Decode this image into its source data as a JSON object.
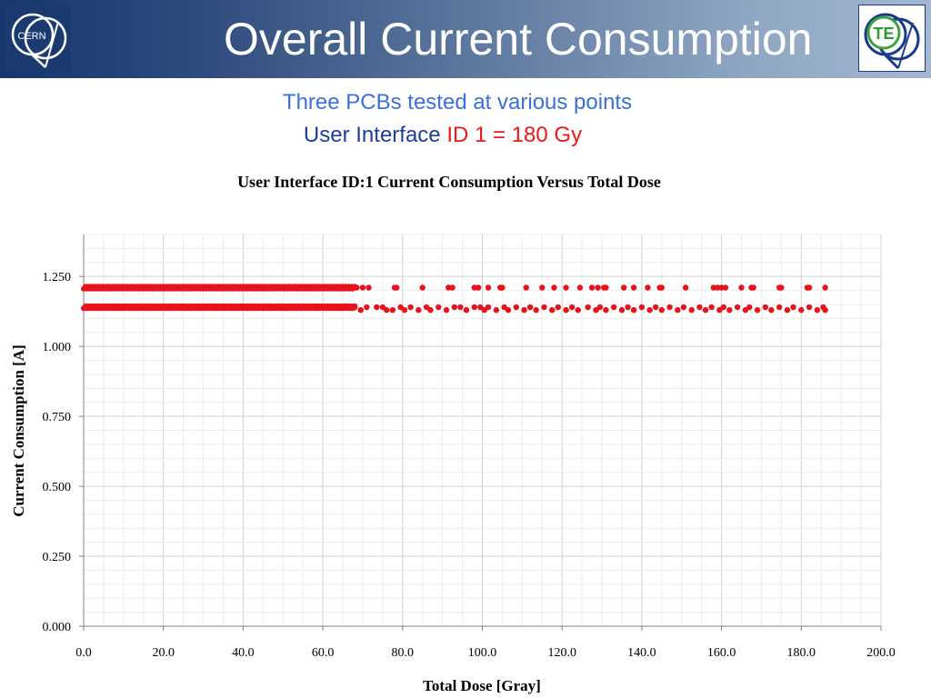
{
  "slide": {
    "title": "Overall Current Consumption",
    "subtitle_line1": "Three PCBs tested at various points",
    "subtitle_line2_prefix": "User Interface",
    "subtitle_line2_highlight": "ID 1 = 180 Gy",
    "cern_logo_text": "CERN",
    "te_logo_text": "TE"
  },
  "colors": {
    "title_text": "#ffffff",
    "subtitle_blue": "#3a6fe0",
    "subtitle_dark_blue": "#1c3d9c",
    "highlight_red": "#e81a1a",
    "marker_red": "#e8131a",
    "header_band_start": "#16366c",
    "header_band_end": "#a3b8cf"
  },
  "chart_data": {
    "type": "scatter",
    "title": "User Interface ID:1 Current Consumption Versus Total Dose",
    "xlabel": "Total Dose [Gray]",
    "ylabel": "Current Consumption [A]",
    "xlim": [
      0,
      200
    ],
    "ylim": [
      0,
      1.4
    ],
    "x_ticks": [
      "0.0",
      "20.0",
      "40.0",
      "60.0",
      "80.0",
      "100.0",
      "120.0",
      "140.0",
      "160.0",
      "180.0",
      "200.0"
    ],
    "y_ticks": [
      "0.000",
      "0.250",
      "0.500",
      "0.750",
      "1.000",
      "1.250"
    ],
    "grid": "on",
    "marker_color": "#e8131a",
    "series": [
      {
        "dense_range": [
          0,
          68
        ],
        "dense_level": 1.21,
        "x": [
          68.5,
          70.0,
          71.5,
          78.0,
          78.5,
          85.0,
          91.5,
          92.5,
          98.0,
          99.0,
          101.5,
          104.5,
          105.0,
          111.0,
          115.0,
          118.0,
          121.0,
          124.5,
          127.5,
          129.0,
          130.5,
          131.0,
          135.5,
          138.0,
          141.5,
          144.5,
          145.0,
          151.0,
          158.0,
          159.0,
          160.0,
          161.0,
          165.0,
          167.5,
          168.0,
          174.5,
          175.0,
          181.5,
          182.0,
          186.0
        ],
        "y": [
          1.21,
          1.21,
          1.21,
          1.21,
          1.21,
          1.21,
          1.21,
          1.21,
          1.21,
          1.21,
          1.21,
          1.21,
          1.21,
          1.21,
          1.21,
          1.21,
          1.21,
          1.21,
          1.21,
          1.21,
          1.21,
          1.21,
          1.21,
          1.21,
          1.21,
          1.21,
          1.21,
          1.21,
          1.21,
          1.21,
          1.21,
          1.21,
          1.21,
          1.21,
          1.21,
          1.21,
          1.21,
          1.21,
          1.21,
          1.21
        ]
      },
      {
        "dense_range": [
          0,
          68
        ],
        "dense_level": 1.14,
        "x": [
          68.0,
          69.5,
          71.0,
          73.5,
          75.0,
          76.0,
          77.5,
          79.5,
          80.5,
          82.0,
          84.0,
          86.0,
          87.0,
          89.0,
          91.0,
          93.0,
          94.5,
          96.0,
          98.0,
          99.5,
          100.5,
          101.5,
          103.5,
          105.5,
          106.5,
          108.5,
          110.5,
          112.0,
          113.5,
          115.5,
          117.5,
          119.0,
          121.0,
          122.5,
          124.0,
          126.5,
          128.5,
          129.5,
          131.0,
          133.0,
          135.0,
          136.5,
          138.0,
          140.0,
          142.0,
          143.5,
          145.0,
          147.0,
          149.0,
          150.5,
          152.5,
          154.5,
          156.0,
          157.5,
          159.5,
          160.5,
          162.0,
          164.0,
          166.0,
          167.0,
          169.0,
          171.0,
          172.5,
          174.5,
          176.5,
          178.0,
          180.0,
          182.0,
          184.0,
          185.5,
          186.0
        ],
        "y": [
          1.14,
          1.13,
          1.14,
          1.14,
          1.14,
          1.13,
          1.13,
          1.14,
          1.13,
          1.14,
          1.13,
          1.14,
          1.13,
          1.14,
          1.13,
          1.14,
          1.14,
          1.13,
          1.14,
          1.14,
          1.13,
          1.14,
          1.13,
          1.14,
          1.13,
          1.14,
          1.13,
          1.14,
          1.13,
          1.14,
          1.13,
          1.14,
          1.13,
          1.14,
          1.13,
          1.14,
          1.13,
          1.14,
          1.13,
          1.14,
          1.13,
          1.14,
          1.13,
          1.14,
          1.13,
          1.14,
          1.13,
          1.14,
          1.13,
          1.14,
          1.13,
          1.14,
          1.13,
          1.14,
          1.13,
          1.14,
          1.13,
          1.14,
          1.13,
          1.14,
          1.13,
          1.14,
          1.13,
          1.14,
          1.13,
          1.14,
          1.13,
          1.14,
          1.13,
          1.14,
          1.13
        ]
      }
    ]
  }
}
